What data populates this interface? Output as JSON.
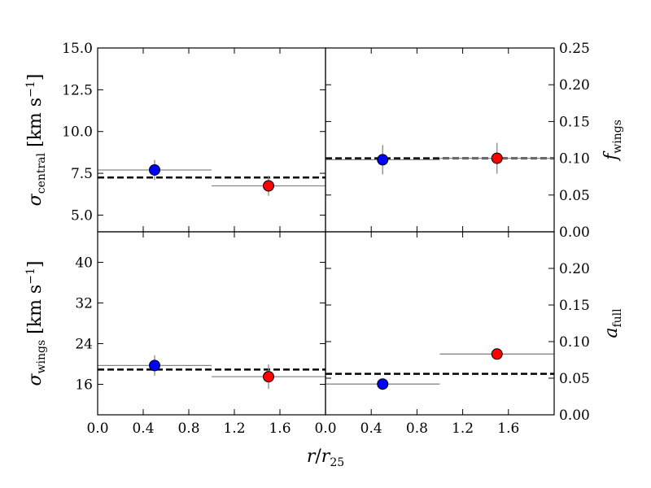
{
  "chart_data": [
    {
      "type": "scatter",
      "panel": "top-left",
      "ylabel_symbol": "σ",
      "ylabel_sub": "central",
      "ylabel_units": "[km s",
      "ylabel_units_sup": "−1",
      "ylabel_units_close": "]",
      "ylim": [
        4.0,
        15.0
      ],
      "xlim": [
        0.0,
        2.0
      ],
      "yticks": [
        5.0,
        7.5,
        10.0,
        12.5,
        15.0
      ],
      "yticklabels": [
        "5.0",
        "7.5",
        "10.0",
        "12.5",
        "15.0"
      ],
      "yaxis_side": "left",
      "mean_line": 7.25,
      "points": [
        {
          "x": 0.5,
          "y": 7.7,
          "yerr": 0.6,
          "xmin": 0.0,
          "xmax": 1.0,
          "color": "#0000ff"
        },
        {
          "x": 1.5,
          "y": 6.75,
          "yerr": 0.6,
          "xmin": 1.0,
          "xmax": 2.0,
          "color": "#ff0000"
        }
      ]
    },
    {
      "type": "scatter",
      "panel": "top-right",
      "ylabel_symbol": "f",
      "ylabel_sub": "wings",
      "ylim": [
        0.0,
        0.25
      ],
      "xlim": [
        0.0,
        2.0
      ],
      "yticks": [
        0.0,
        0.05,
        0.1,
        0.15,
        0.2,
        0.25
      ],
      "yticklabels": [
        "0.00",
        "0.05",
        "0.10",
        "0.15",
        "0.20",
        "0.25"
      ],
      "yaxis_side": "right",
      "mean_line": 0.1,
      "points": [
        {
          "x": 0.5,
          "y": 0.098,
          "yerr": 0.02,
          "xmin": 0.0,
          "xmax": 1.0,
          "color": "#0000ff"
        },
        {
          "x": 1.5,
          "y": 0.1,
          "yerr": 0.021,
          "xmin": 1.0,
          "xmax": 2.0,
          "color": "#ff0000"
        }
      ]
    },
    {
      "type": "scatter",
      "panel": "bottom-left",
      "ylabel_symbol": "σ",
      "ylabel_sub": "wings",
      "ylabel_units": "[km s",
      "ylabel_units_sup": "−1",
      "ylabel_units_close": "]",
      "ylim": [
        10.0,
        46.0
      ],
      "xlim": [
        0.0,
        2.0
      ],
      "yticks": [
        16,
        24,
        32,
        40
      ],
      "yticklabels": [
        "16",
        "24",
        "32",
        "40"
      ],
      "xticks": [
        0.0,
        0.4,
        0.8,
        1.2,
        1.6
      ],
      "xticklabels": [
        "0.0",
        "0.4",
        "0.8",
        "1.2",
        "1.6"
      ],
      "yaxis_side": "left",
      "mean_line": 18.9,
      "points": [
        {
          "x": 0.5,
          "y": 19.7,
          "yerr": 2.0,
          "xmin": 0.0,
          "xmax": 1.0,
          "color": "#0000ff"
        },
        {
          "x": 1.5,
          "y": 17.5,
          "yerr": 2.4,
          "xmin": 1.0,
          "xmax": 2.0,
          "color": "#ff0000"
        }
      ]
    },
    {
      "type": "scatter",
      "panel": "bottom-right",
      "ylabel_symbol": "a",
      "ylabel_sub": "full",
      "ylim": [
        0.0,
        0.25
      ],
      "xlim": [
        0.0,
        2.0
      ],
      "yticks": [
        0.0,
        0.05,
        0.1,
        0.15,
        0.2
      ],
      "yticklabels": [
        "0.00",
        "0.05",
        "0.10",
        "0.15",
        "0.20"
      ],
      "xticks": [
        0.0,
        0.4,
        0.8,
        1.2,
        1.6
      ],
      "xticklabels": [
        "0.0",
        "0.4",
        "0.8",
        "1.2",
        "1.6"
      ],
      "yaxis_side": "right",
      "mean_line": 0.056,
      "points": [
        {
          "x": 0.5,
          "y": 0.042,
          "yerr": 0.0,
          "xmin": 0.0,
          "xmax": 1.0,
          "color": "#0000ff"
        },
        {
          "x": 1.5,
          "y": 0.083,
          "yerr": 0.0,
          "xmin": 1.0,
          "xmax": 2.0,
          "color": "#ff0000"
        }
      ]
    }
  ],
  "xlabel_symbol": "r",
  "xlabel_slash": "/",
  "xlabel_symbol2": "r",
  "xlabel_sub": "25"
}
